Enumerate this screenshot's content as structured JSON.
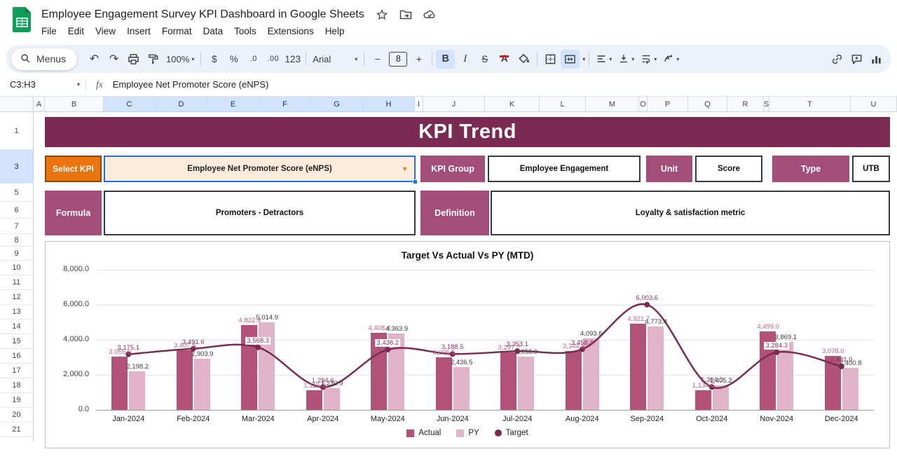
{
  "titlebar": {
    "doc_title": "Employee Engagement Survey KPI Dashboard in Google Sheets",
    "menus": [
      "File",
      "Edit",
      "View",
      "Insert",
      "Format",
      "Data",
      "Tools",
      "Extensions",
      "Help"
    ]
  },
  "toolbar": {
    "menus_label": "Menus",
    "zoom_value": "100%",
    "currency_label": "$",
    "percent_label": "%",
    "decrease_decimal_label": ".0",
    "increase_decimal_label": ".00",
    "more_formats_label": "123",
    "font_name": "Arial",
    "decrease_font_label": "−",
    "font_size": "8",
    "increase_font_label": "+",
    "bold_label": "B",
    "italic_label": "I",
    "strikethrough_label": "S",
    "text_color_label": "A"
  },
  "formula_bar": {
    "cell_ref": "C3:H3",
    "fx_label": "fx",
    "formula": "Employee Net Promoter Score (eNPS)"
  },
  "grid": {
    "columns": [
      "A",
      "B",
      "C",
      "D",
      "E",
      "F",
      "G",
      "H",
      "I",
      "J",
      "K",
      "L",
      "M",
      "O",
      "P",
      "Q",
      "R",
      "S",
      "T",
      "U"
    ],
    "selected_columns": [
      "C",
      "D",
      "E",
      "F",
      "G",
      "H"
    ],
    "rows": [
      1,
      3,
      5,
      6,
      7,
      8,
      9,
      10,
      11,
      12,
      13,
      14,
      15,
      16,
      17,
      18,
      19,
      20,
      21
    ],
    "selected_row": 3
  },
  "dashboard": {
    "banner_title": "KPI Trend",
    "select_kpi_label": "Select KPI",
    "kpi_value": "Employee Net Promoter Score (eNPS)",
    "kpi_group_label": "KPI Group",
    "kpi_group_value": "Employee Engagement",
    "unit_label": "Unit",
    "unit_value": "Score",
    "type_label": "Type",
    "type_value": "UTB",
    "formula_label": "Formula",
    "formula_value": "Promoters - Detractors",
    "definition_label": "Definition",
    "definition_value": "Loyalty & satisfaction metric"
  },
  "chart_data": {
    "type": "bar",
    "subtype": "grouped-bars-with-target-line",
    "title": "Target Vs Actual Vs PY (MTD)",
    "categories": [
      "Jan-2024",
      "Feb-2024",
      "Mar-2024",
      "Apr-2024",
      "May-2024",
      "Jun-2024",
      "Jul-2024",
      "Aug-2024",
      "Sep-2024",
      "Oct-2024",
      "Nov-2024",
      "Dec-2024"
    ],
    "series": [
      {
        "name": "Actual",
        "type": "bar",
        "color": "#b25278",
        "values": [
          3055.0,
          3407.5,
          4822.4,
          1116.8,
          4408.4,
          3006.5,
          3297.2,
          3344.5,
          4921.7,
          1134.6,
          4499.0,
          3078.0
        ]
      },
      {
        "name": "PY",
        "type": "bar",
        "color": "#e0b3c8",
        "values": [
          2198.2,
          2903.9,
          5014.9,
          1230.9,
          4363.9,
          2436.5,
          3053.0,
          4093.6,
          4773.4,
          1405.2,
          3869.1,
          2400.8
        ]
      },
      {
        "name": "Target",
        "type": "line",
        "color": "#7a2b52",
        "values": [
          3175.1,
          3491.6,
          3568.3,
          1294.6,
          3438.2,
          3188.5,
          3353.1,
          3458.4,
          6003.6,
          1304.0,
          3284.3,
          2481.0
        ]
      }
    ],
    "ylim": [
      0,
      8000
    ],
    "ytick_labels": [
      "8,000.0",
      "6,000.0",
      "4,000.0",
      "2,000.0",
      "0.0"
    ],
    "grid": true,
    "legend_position": "bottom",
    "label_colors": {
      "Actual": "#bd6186",
      "PY": "#3d3d3d",
      "Target": "#8d3561"
    },
    "boxed_target_label_indices": [
      2,
      4,
      10
    ]
  }
}
